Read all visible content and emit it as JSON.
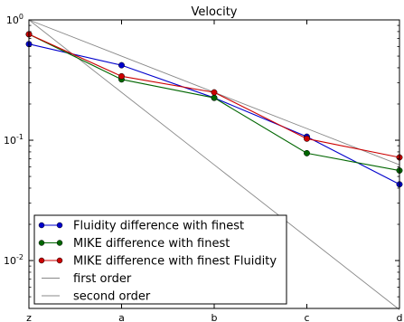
{
  "chart_data": {
    "type": "line",
    "title": "Velocity",
    "xlabel": "",
    "ylabel": "",
    "y_scale": "log",
    "ylim": [
      0.004,
      1.0
    ],
    "categories": [
      "z",
      "a",
      "b",
      "c",
      "d"
    ],
    "y_ticks": [
      {
        "value": 1,
        "base": "10",
        "exp": "0"
      },
      {
        "value": 0.1,
        "base": "10",
        "exp": "-1"
      },
      {
        "value": 0.01,
        "base": "10",
        "exp": "-2"
      }
    ],
    "grid": false,
    "legend_position": "lower-left",
    "series": [
      {
        "name": "Fluidity difference with finest",
        "color": "#0000cc",
        "marker": "circle",
        "values": [
          0.63,
          0.42,
          0.225,
          0.107,
          0.043
        ]
      },
      {
        "name": "MIKE difference with finest",
        "color": "#006600",
        "marker": "circle",
        "values": [
          0.76,
          0.32,
          0.225,
          0.078,
          0.056
        ]
      },
      {
        "name": "MIKE difference with finest Fluidity",
        "color": "#cc0000",
        "marker": "circle",
        "values": [
          0.76,
          0.34,
          0.25,
          0.103,
          0.072
        ]
      },
      {
        "name": "first order",
        "color": "#888888",
        "marker": "none",
        "values": [
          1.0,
          0.5,
          0.25,
          0.125,
          0.0625
        ]
      },
      {
        "name": "second order",
        "color": "#888888",
        "marker": "none",
        "values": [
          1.0,
          0.25,
          0.0625,
          0.015625,
          0.00390625
        ]
      }
    ]
  }
}
